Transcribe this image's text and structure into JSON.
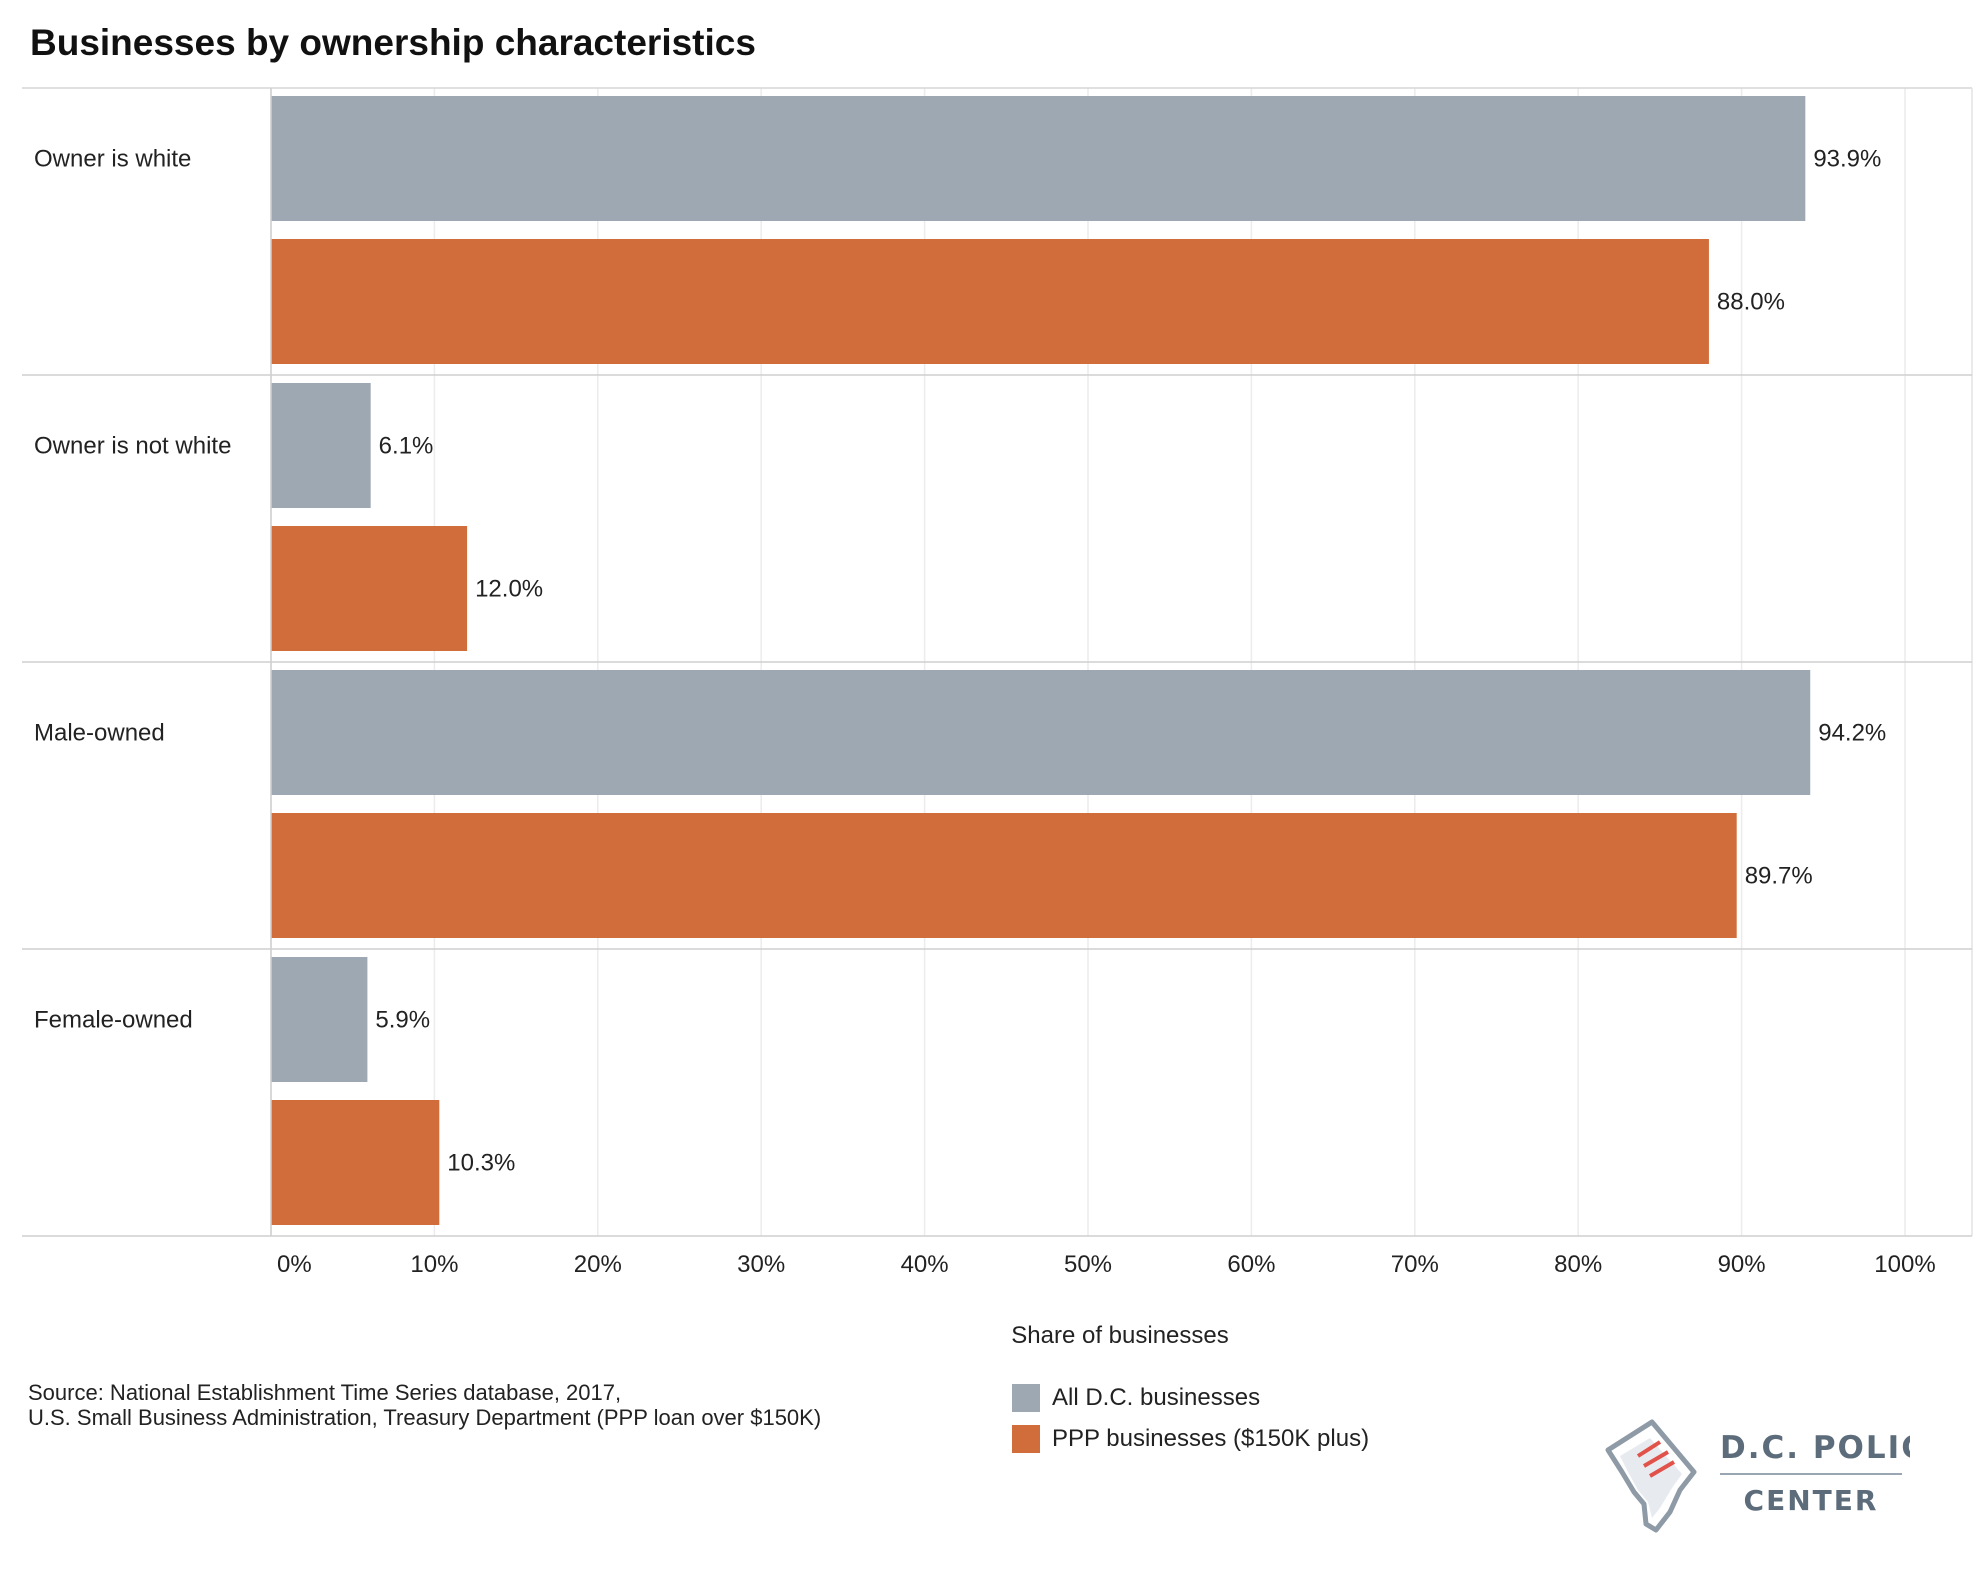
{
  "chart_data": {
    "type": "bar",
    "orientation": "horizontal",
    "title": "Businesses by ownership characteristics",
    "categories": [
      "Owner is white",
      "Owner is not white",
      "Male-owned",
      "Female-owned"
    ],
    "series": [
      {
        "name": "All D.C. businesses",
        "color": "#9ea8b3",
        "values": [
          93.9,
          6.1,
          94.2,
          5.9
        ],
        "labels": [
          "93.9%",
          "6.1%",
          "94.2%",
          "5.9%"
        ]
      },
      {
        "name": "PPP businesses ($150K plus)",
        "color": "#d16d3b",
        "values": [
          88.0,
          12.0,
          89.7,
          10.3
        ],
        "labels": [
          "88.0%",
          "12.0%",
          "89.7%",
          "10.3%"
        ]
      }
    ],
    "xlabel": "Share of businesses",
    "xlim": [
      0,
      100
    ],
    "xticks": [
      0,
      10,
      20,
      30,
      40,
      50,
      60,
      70,
      80,
      90,
      100
    ],
    "xtick_labels": [
      "0%",
      "10%",
      "20%",
      "30%",
      "40%",
      "50%",
      "60%",
      "70%",
      "80%",
      "90%",
      "100%"
    ],
    "grid": true,
    "legend_position": "bottom"
  },
  "source": {
    "line1": "Source: National Establishment Time Series database, 2017,",
    "line2": "U.S. Small Business Administration, Treasury Department (PPP loan over $150K)"
  },
  "logo": {
    "line1": "D.C. POLICY",
    "line2": "CENTER",
    "icon": "dc-map-document-icon"
  }
}
